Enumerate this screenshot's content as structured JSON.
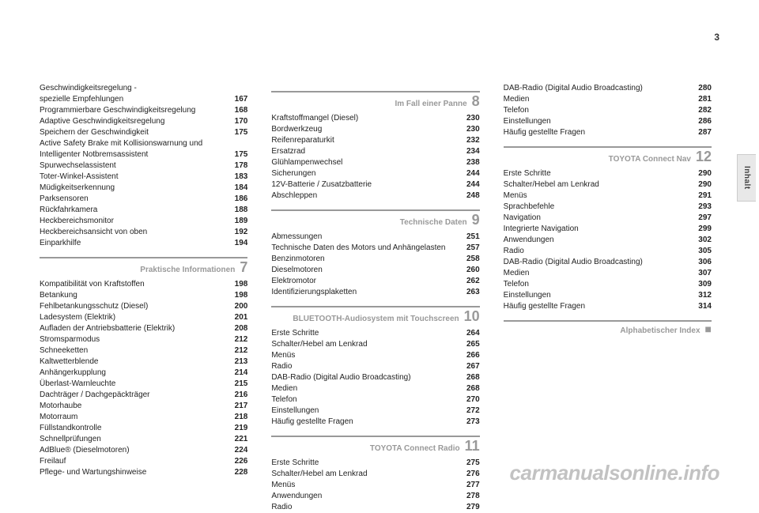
{
  "page_number": "3",
  "side_tab": "Inhalt",
  "watermark": "carmanualsonline.info",
  "columns": [
    {
      "blocks": [
        {
          "type": "entries",
          "items": [
            {
              "label": "Geschwindigkeitsregelung -",
              "page": ""
            },
            {
              "label": "spezielle Empfehlungen",
              "page": "167"
            },
            {
              "label": "Programmierbare Geschwindigkeitsregelung",
              "page": "168"
            },
            {
              "label": "Adaptive Geschwindigkeitsregelung",
              "page": "170"
            },
            {
              "label": "Speichern der Geschwindigkeit",
              "page": "175"
            },
            {
              "label": "Active Safety Brake mit Kollisionswarnung und",
              "page": ""
            },
            {
              "label": "Intelligenter Notbremsassistent",
              "page": "175"
            },
            {
              "label": "Spurwechselassistent",
              "page": "178"
            },
            {
              "label": "Toter-Winkel-Assistent",
              "page": "183"
            },
            {
              "label": "Müdigkeitserkennung",
              "page": "184"
            },
            {
              "label": "Parksensoren",
              "page": "186"
            },
            {
              "label": "Rückfahrkamera",
              "page": "188"
            },
            {
              "label": "Heckbereichsmonitor",
              "page": "189"
            },
            {
              "label": "Heckbereichsansicht von oben",
              "page": "192"
            },
            {
              "label": "Einparkhilfe",
              "page": "194"
            }
          ]
        },
        {
          "type": "section",
          "title": "Praktische Informationen",
          "number": "7"
        },
        {
          "type": "entries",
          "items": [
            {
              "label": "Kompatibilität von Kraftstoffen",
              "page": "198"
            },
            {
              "label": "Betankung",
              "page": "198"
            },
            {
              "label": "Fehlbetankungsschutz (Diesel)",
              "page": "200"
            },
            {
              "label": "Ladesystem (Elektrik)",
              "page": "201"
            },
            {
              "label": "Aufladen der Antriebsbatterie (Elektrik)",
              "page": "208"
            },
            {
              "label": "Stromsparmodus",
              "page": "212"
            },
            {
              "label": "Schneeketten",
              "page": "212"
            },
            {
              "label": "Kaltwetterblende",
              "page": "213"
            },
            {
              "label": "Anhängerkupplung",
              "page": "214"
            },
            {
              "label": "Überlast-Warnleuchte",
              "page": "215"
            },
            {
              "label": "Dachträger / Dachgepäckträger",
              "page": "216"
            },
            {
              "label": "Motorhaube",
              "page": "217"
            },
            {
              "label": "Motorraum",
              "page": "218"
            },
            {
              "label": "Füllstandkontrolle",
              "page": "219"
            },
            {
              "label": "Schnellprüfungen",
              "page": "221"
            },
            {
              "label": "AdBlue® (Dieselmotoren)",
              "page": "224"
            },
            {
              "label": "Freilauf",
              "page": "226"
            },
            {
              "label": "Pflege- und Wartungshinweise",
              "page": "228"
            }
          ]
        }
      ]
    },
    {
      "blocks": [
        {
          "type": "section",
          "title": "Im Fall einer Panne",
          "number": "8"
        },
        {
          "type": "entries",
          "items": [
            {
              "label": "Kraftstoffmangel (Diesel)",
              "page": "230"
            },
            {
              "label": "Bordwerkzeug",
              "page": "230"
            },
            {
              "label": "Reifenreparaturkit",
              "page": "232"
            },
            {
              "label": "Ersatzrad",
              "page": "234"
            },
            {
              "label": "Glühlampenwechsel",
              "page": "238"
            },
            {
              "label": "Sicherungen",
              "page": "244"
            },
            {
              "label": "12V-Batterie / Zusatzbatterie",
              "page": "244"
            },
            {
              "label": "Abschleppen",
              "page": "248"
            }
          ]
        },
        {
          "type": "section",
          "title": "Technische Daten",
          "number": "9"
        },
        {
          "type": "entries",
          "items": [
            {
              "label": "Abmessungen",
              "page": "251"
            },
            {
              "label": "Technische Daten des Motors und Anhängelasten",
              "page": "257"
            },
            {
              "label": "Benzinmotoren",
              "page": "258"
            },
            {
              "label": "Dieselmotoren",
              "page": "260"
            },
            {
              "label": "Elektromotor",
              "page": "262"
            },
            {
              "label": "Identifizierungsplaketten",
              "page": "263"
            }
          ]
        },
        {
          "type": "section",
          "title": "BLUETOOTH-Audiosystem mit Touchscreen",
          "number": "10"
        },
        {
          "type": "entries",
          "items": [
            {
              "label": "Erste Schritte",
              "page": "264"
            },
            {
              "label": "Schalter/Hebel am Lenkrad",
              "page": "265"
            },
            {
              "label": "Menüs",
              "page": "266"
            },
            {
              "label": "Radio",
              "page": "267"
            },
            {
              "label": "DAB-Radio (Digital Audio Broadcasting)",
              "page": "268"
            },
            {
              "label": "Medien",
              "page": "268"
            },
            {
              "label": "Telefon",
              "page": "270"
            },
            {
              "label": "Einstellungen",
              "page": "272"
            },
            {
              "label": "Häufig gestellte Fragen",
              "page": "273"
            }
          ]
        },
        {
          "type": "section",
          "title": "TOYOTA Connect Radio",
          "number": "11"
        },
        {
          "type": "entries",
          "items": [
            {
              "label": "Erste Schritte",
              "page": "275"
            },
            {
              "label": "Schalter/Hebel am Lenkrad",
              "page": "276"
            },
            {
              "label": "Menüs",
              "page": "277"
            },
            {
              "label": "Anwendungen",
              "page": "278"
            },
            {
              "label": "Radio",
              "page": "279"
            }
          ]
        }
      ]
    },
    {
      "blocks": [
        {
          "type": "entries",
          "items": [
            {
              "label": "DAB-Radio (Digital Audio Broadcasting)",
              "page": "280"
            },
            {
              "label": "Medien",
              "page": "281"
            },
            {
              "label": "Telefon",
              "page": "282"
            },
            {
              "label": "Einstellungen",
              "page": "286"
            },
            {
              "label": "Häufig gestellte Fragen",
              "page": "287"
            }
          ]
        },
        {
          "type": "section",
          "title": "TOYOTA Connect Nav",
          "number": "12"
        },
        {
          "type": "entries",
          "items": [
            {
              "label": "Erste Schritte",
              "page": "290"
            },
            {
              "label": "Schalter/Hebel am Lenkrad",
              "page": "290"
            },
            {
              "label": "Menüs",
              "page": "291"
            },
            {
              "label": "Sprachbefehle",
              "page": "293"
            },
            {
              "label": "Navigation",
              "page": "297"
            },
            {
              "label": "Integrierte Navigation",
              "page": "299"
            },
            {
              "label": "Anwendungen",
              "page": "302"
            },
            {
              "label": "Radio",
              "page": "305"
            },
            {
              "label": "DAB-Radio (Digital Audio Broadcasting)",
              "page": "306"
            },
            {
              "label": "Medien",
              "page": "307"
            },
            {
              "label": "Telefon",
              "page": "309"
            },
            {
              "label": "Einstellungen",
              "page": "312"
            },
            {
              "label": "Häufig gestellte Fragen",
              "page": "314"
            }
          ]
        },
        {
          "type": "section",
          "title": "Alphabetischer Index",
          "number": "■",
          "square": true
        }
      ]
    }
  ]
}
